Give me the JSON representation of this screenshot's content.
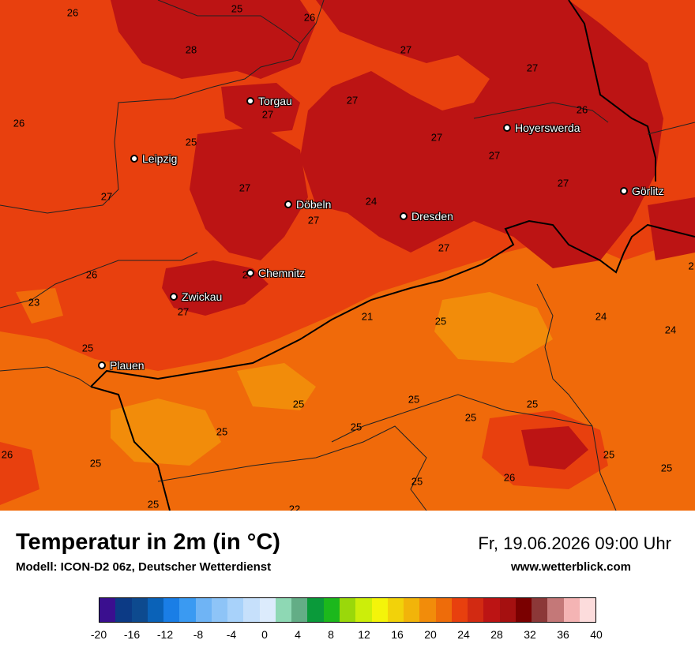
{
  "title": "Temperatur in 2m (in °C)",
  "model": "Modell: ICON-D2 06z, Deutscher Wetterdienst",
  "datetime": "Fr, 19.06.2026 09:00 Uhr",
  "website": "www.wetterblick.com",
  "cities": [
    {
      "id": "torgau",
      "name": "Torgau"
    },
    {
      "id": "leipzig",
      "name": "Leipzig"
    },
    {
      "id": "hoyerswerda",
      "name": "Hoyerswerda"
    },
    {
      "id": "goerlitz",
      "name": "Görlitz"
    },
    {
      "id": "doebeln",
      "name": "Döbeln"
    },
    {
      "id": "dresden",
      "name": "Dresden"
    },
    {
      "id": "chemnitz",
      "name": "Chemnitz"
    },
    {
      "id": "zwickau",
      "name": "Zwickau"
    },
    {
      "id": "plauen",
      "name": "Plauen"
    }
  ],
  "values": [
    "26",
    "25",
    "26",
    "28",
    "27",
    "27",
    "27",
    "26",
    "27",
    "26",
    "27",
    "25",
    "27",
    "27",
    "27",
    "24",
    "27",
    "27",
    "27",
    "26",
    "23",
    "27",
    "27",
    "21",
    "25",
    "24",
    "24",
    "25",
    "25",
    "25",
    "25",
    "25",
    "25",
    "25",
    "26",
    "25",
    "25",
    "26",
    "25",
    "25",
    "22",
    "2"
  ],
  "legend": {
    "colors": [
      "#3a0f8f",
      "#0c3a85",
      "#0d4a8f",
      "#0a62b8",
      "#1a7ee6",
      "#3a9af2",
      "#6fb4f5",
      "#8ec4f7",
      "#a8d2fa",
      "#c6e0fb",
      "#dcebfc",
      "#8ed8b4",
      "#63ad86",
      "#0a9a3a",
      "#1cb81c",
      "#9ad80a",
      "#ccee0a",
      "#f4f40a",
      "#f2d20a",
      "#f2b40a",
      "#f28c0a",
      "#ee6c0a",
      "#e8400e",
      "#d22a12",
      "#bc1414",
      "#a51010",
      "#7a0000",
      "#8c3838",
      "#c47878",
      "#f4b4b4",
      "#fcdcdc"
    ],
    "ticks": [
      "-20",
      "-16",
      "-12",
      "-8",
      "-4",
      "0",
      "4",
      "8",
      "12",
      "16",
      "20",
      "24",
      "28",
      "32",
      "36",
      "40"
    ]
  }
}
